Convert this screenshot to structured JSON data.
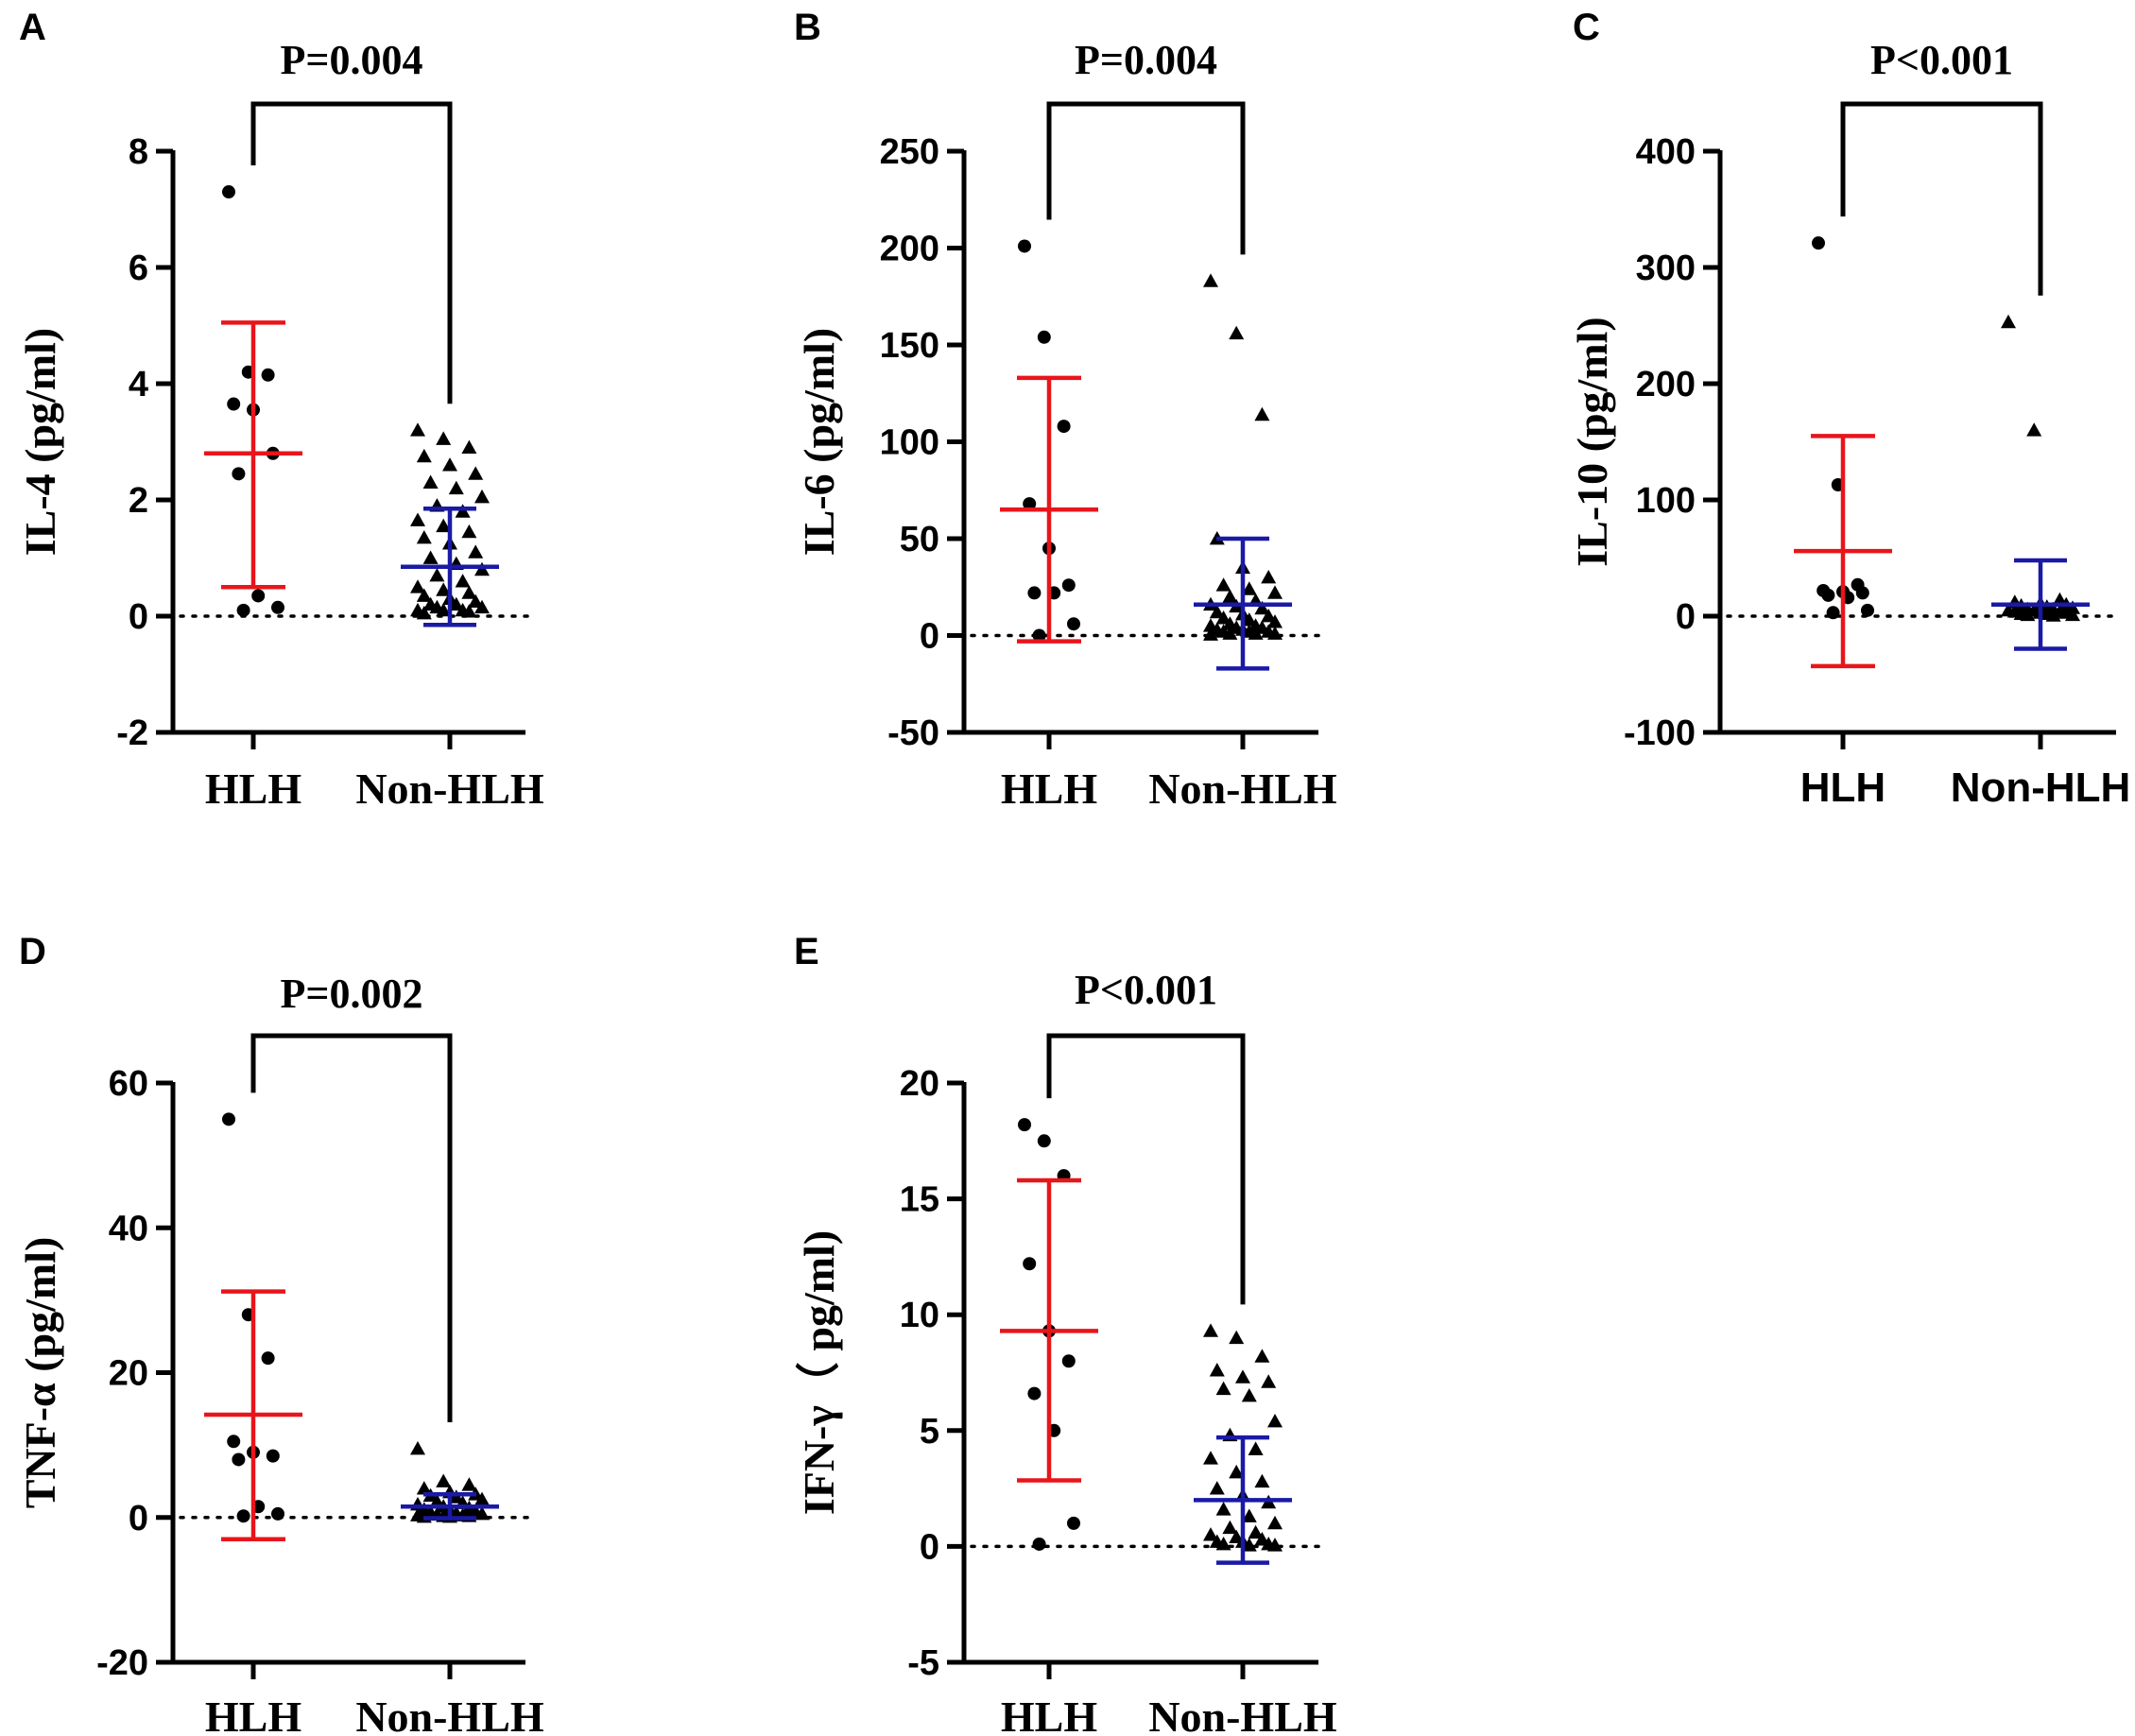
{
  "colors": {
    "hlh_bar": "#e8151b",
    "non_hlh_bar": "#1a1aa6",
    "point": "#000000",
    "axis": "#000000"
  },
  "chart_data": [
    {
      "panel": "A",
      "type": "scatter",
      "title": "P=0.004",
      "ylabel": "IL-4 (pg/ml)",
      "categories": [
        "HLH",
        "Non-HLH"
      ],
      "ylim": [
        -2,
        8
      ],
      "yticks": [
        -2,
        0,
        2,
        4,
        6,
        8
      ],
      "series": [
        {
          "name": "HLH",
          "marker": "circle",
          "mean": 2.8,
          "err_low": 0.5,
          "err_high": 5.05,
          "values": [
            7.3,
            4.2,
            4.15,
            3.65,
            3.55,
            2.8,
            2.45,
            0.35,
            0.15,
            0.1
          ]
        },
        {
          "name": "Non-HLH",
          "marker": "triangle",
          "mean": 0.85,
          "err_low": -0.15,
          "err_high": 1.85,
          "values": [
            3.2,
            3.05,
            2.9,
            2.75,
            2.6,
            2.45,
            2.3,
            2.2,
            2.05,
            1.9,
            1.8,
            1.65,
            1.55,
            1.45,
            1.35,
            1.25,
            1.1,
            1.0,
            0.9,
            0.8,
            0.7,
            0.6,
            0.5,
            0.45,
            0.4,
            0.35,
            0.3,
            0.25,
            0.2,
            0.2,
            0.15,
            0.15,
            0.1,
            0.1,
            0.1,
            0.08,
            0.05
          ]
        }
      ]
    },
    {
      "panel": "B",
      "type": "scatter",
      "title": "P=0.004",
      "ylabel": "IL-6 (pg/ml)",
      "categories": [
        "HLH",
        "Non-HLH"
      ],
      "ylim": [
        -50,
        250
      ],
      "yticks": [
        -50,
        0,
        50,
        100,
        150,
        200,
        250
      ],
      "series": [
        {
          "name": "HLH",
          "marker": "circle",
          "mean": 65,
          "err_low": -3,
          "err_high": 133,
          "values": [
            201,
            154,
            108,
            68,
            45,
            26,
            22,
            22,
            6,
            0
          ]
        },
        {
          "name": "Non-HLH",
          "marker": "triangle",
          "mean": 16,
          "err_low": -17,
          "err_high": 50,
          "values": [
            183,
            156,
            114,
            50,
            35,
            30,
            26,
            24,
            22,
            20,
            18,
            16,
            15,
            14,
            12,
            11,
            10,
            9,
            8,
            7,
            6,
            5,
            5,
            4,
            4,
            3,
            3,
            2,
            2,
            2,
            1,
            1,
            1,
            0.5
          ]
        }
      ]
    },
    {
      "panel": "C",
      "type": "scatter",
      "title": "P<0.001",
      "ylabel": "IL-10 (pg/ml)",
      "categories": [
        "HLH",
        "Non-HLH"
      ],
      "ylim": [
        -100,
        400
      ],
      "yticks": [
        -100,
        0,
        100,
        200,
        300,
        400
      ],
      "series": [
        {
          "name": "HLH",
          "marker": "circle",
          "mean": 56,
          "err_low": -43,
          "err_high": 155,
          "values": [
            321,
            113,
            27,
            22,
            21,
            20,
            18,
            16,
            5,
            3
          ]
        },
        {
          "name": "Non-HLH",
          "marker": "triangle",
          "mean": 10,
          "err_low": -28,
          "err_high": 48,
          "values": [
            253,
            160,
            14,
            12,
            11,
            10,
            9,
            8,
            7,
            6,
            6,
            5,
            5,
            4,
            4,
            3,
            3,
            2,
            2,
            1,
            1,
            0.5
          ]
        }
      ]
    },
    {
      "panel": "D",
      "type": "scatter",
      "title": "P=0.002",
      "ylabel": "TNF-α (pg/ml)",
      "categories": [
        "HLH",
        "Non-HLH"
      ],
      "ylim": [
        -20,
        60
      ],
      "yticks": [
        -20,
        0,
        20,
        40,
        60
      ],
      "series": [
        {
          "name": "HLH",
          "marker": "circle",
          "mean": 14.2,
          "err_low": -3,
          "err_high": 31.2,
          "values": [
            55,
            28,
            22,
            10.5,
            9,
            8.5,
            8,
            1.5,
            0.5,
            0.2
          ]
        },
        {
          "name": "Non-HLH",
          "marker": "triangle",
          "mean": 1.5,
          "err_low": -0.1,
          "err_high": 3.2,
          "values": [
            9.5,
            5,
            4.5,
            4,
            3.5,
            3.2,
            3,
            2.8,
            2.5,
            2.2,
            2,
            1.8,
            1.5,
            1.3,
            1.1,
            1,
            0.8,
            0.7,
            0.6,
            0.5,
            0.4,
            0.3,
            0.3,
            0.2,
            0.2,
            0.1,
            0.1
          ]
        }
      ]
    },
    {
      "panel": "E",
      "type": "scatter",
      "title": "P<0.001",
      "ylabel": "IFN-γ（ pg/ml)",
      "categories": [
        "HLH",
        "Non-HLH"
      ],
      "ylim": [
        -5,
        20
      ],
      "yticks": [
        -5,
        0,
        5,
        10,
        15,
        20
      ],
      "series": [
        {
          "name": "HLH",
          "marker": "circle",
          "mean": 9.3,
          "err_low": 2.85,
          "err_high": 15.8,
          "values": [
            18.2,
            17.5,
            16.0,
            12.2,
            9.3,
            8.0,
            6.6,
            5.0,
            1.0,
            0.1
          ]
        },
        {
          "name": "Non-HLH",
          "marker": "triangle",
          "mean": 2.0,
          "err_low": -0.7,
          "err_high": 4.7,
          "values": [
            9.3,
            9.0,
            8.2,
            7.6,
            7.3,
            7.1,
            6.8,
            6.5,
            5.4,
            4.8,
            4.2,
            3.8,
            3.2,
            2.8,
            2.5,
            2.2,
            1.9,
            1.6,
            1.3,
            1.0,
            0.8,
            0.6,
            0.5,
            0.4,
            0.3,
            0.2,
            0.2,
            0.1,
            0.1,
            0.05,
            0.05
          ]
        }
      ]
    }
  ]
}
